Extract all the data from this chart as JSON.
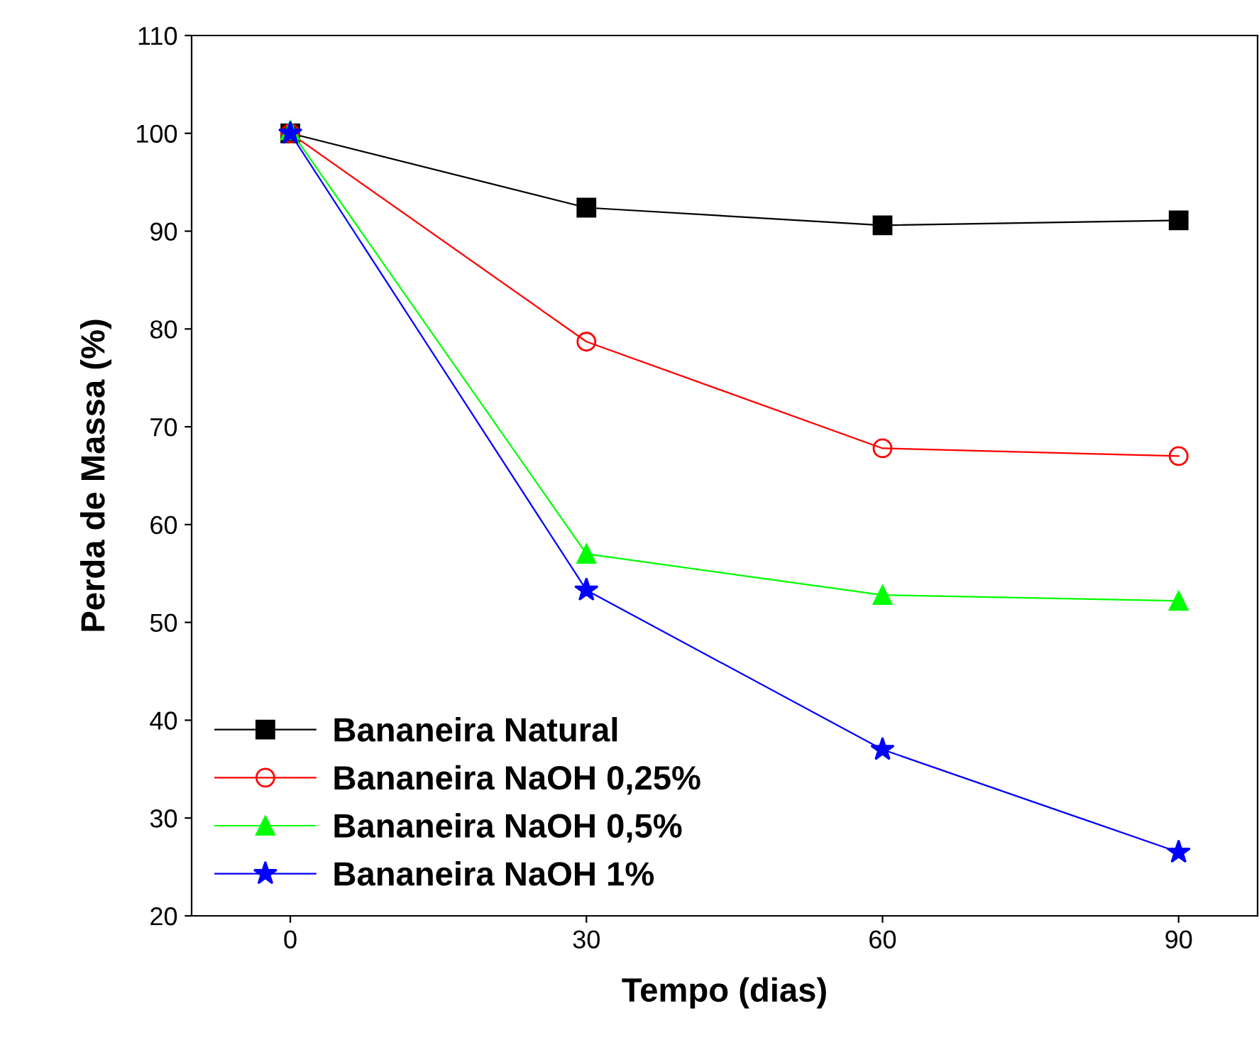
{
  "chart_data": {
    "type": "line",
    "xlabel": "Tempo (dias)",
    "ylabel": "Perda de Massa (%)",
    "x": [
      0,
      30,
      60,
      90
    ],
    "series": [
      {
        "name": "Bananeira Natural",
        "color": "#000000",
        "marker": "square",
        "values": [
          100,
          92.4,
          90.6,
          91.1
        ]
      },
      {
        "name": "Bananeira NaOH 0,25%",
        "color": "#ff0000",
        "marker": "circle",
        "values": [
          100,
          78.7,
          67.8,
          67.0
        ]
      },
      {
        "name": "Bananeira NaOH 0,5%",
        "color": "#00ff00",
        "marker": "triangle",
        "values": [
          100.3,
          57.0,
          52.8,
          52.2
        ]
      },
      {
        "name": "Bananeira NaOH 1%",
        "color": "#0000ff",
        "marker": "star",
        "values": [
          100,
          53.3,
          37.0,
          26.5
        ]
      }
    ],
    "xlim": [
      -10,
      98
    ],
    "ylim": [
      20,
      110
    ],
    "xticks": [
      0,
      30,
      60,
      90
    ],
    "yticks": [
      20,
      30,
      40,
      50,
      60,
      70,
      80,
      90,
      100,
      110
    ],
    "grid": false,
    "legend": "bottom left",
    "line_style": "solid"
  }
}
